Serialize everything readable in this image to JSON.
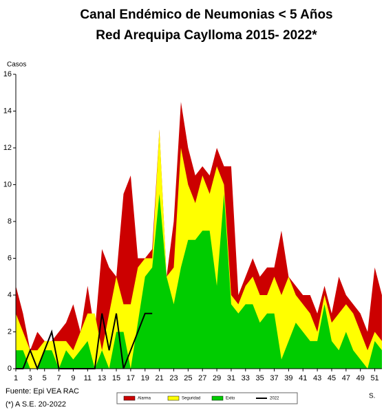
{
  "chart_data": {
    "type": "area",
    "title": "Canal Endémico de Neumonias < 5 Años",
    "subtitle": "Red Arequipa Caylloma 2015- 2022*",
    "y_label": "Casos",
    "x_label": "S.",
    "notes": [
      "Fuente: Epi VEA RAC",
      "(*) A S.E. 20-2022"
    ],
    "x": [
      1,
      2,
      3,
      4,
      5,
      6,
      7,
      8,
      9,
      10,
      11,
      12,
      13,
      14,
      15,
      16,
      17,
      18,
      19,
      20,
      21,
      22,
      23,
      24,
      25,
      26,
      27,
      28,
      29,
      30,
      31,
      32,
      33,
      34,
      35,
      36,
      37,
      38,
      39,
      40,
      41,
      42,
      43,
      44,
      45,
      46,
      47,
      48,
      49,
      50,
      51,
      52
    ],
    "xlim": [
      1,
      52
    ],
    "xticks": [
      1,
      3,
      5,
      7,
      9,
      11,
      13,
      15,
      17,
      19,
      21,
      23,
      25,
      27,
      29,
      31,
      33,
      35,
      37,
      39,
      41,
      43,
      45,
      47,
      49,
      51
    ],
    "ylim": [
      0,
      16
    ],
    "yticks": [
      0,
      2,
      4,
      6,
      8,
      10,
      12,
      14,
      16
    ],
    "grid": false,
    "series": [
      {
        "name": "Alarma",
        "color": "#cc0000",
        "kind": "area",
        "values": [
          4.5,
          3,
          1,
          2,
          1.5,
          1.5,
          2,
          2.5,
          3.5,
          2,
          4.5,
          2,
          6.5,
          5.5,
          5,
          9.5,
          10.5,
          6,
          6,
          6.5,
          13,
          5,
          8,
          14.5,
          12,
          10.5,
          11,
          10.5,
          12,
          11,
          11,
          4,
          5,
          6,
          5,
          5.5,
          5.5,
          7.5,
          5,
          4.5,
          4,
          4,
          3,
          4.5,
          3,
          5,
          4,
          3.5,
          3,
          2,
          5.5,
          4
        ]
      },
      {
        "name": "Seguridad",
        "color": "#ffff00",
        "kind": "area",
        "values": [
          3,
          2,
          1,
          1,
          1.5,
          1.5,
          1.5,
          1.5,
          1,
          2,
          3,
          3,
          1,
          3,
          5,
          3.5,
          3.5,
          5.5,
          6,
          6,
          13,
          5,
          5.5,
          12,
          10,
          9,
          10.5,
          9.5,
          11,
          10,
          4,
          3.5,
          4.5,
          5,
          4,
          4,
          5,
          4,
          5,
          4,
          3.5,
          3,
          2,
          4,
          2.5,
          3,
          3.5,
          3,
          2,
          1,
          2,
          1.5
        ]
      },
      {
        "name": "Exito",
        "color": "#00cc00",
        "kind": "area",
        "values": [
          1,
          1,
          0,
          0,
          1,
          1,
          0,
          1,
          0.5,
          1,
          1.5,
          0,
          1,
          0,
          2,
          2,
          0,
          2.5,
          5,
          5.5,
          9.5,
          5,
          3.5,
          5.5,
          7,
          7,
          7.5,
          7.5,
          4.5,
          9.5,
          3.5,
          3,
          3.5,
          3.5,
          2.5,
          3,
          3,
          0.5,
          1.5,
          2.5,
          2,
          1.5,
          1.5,
          3.5,
          1.5,
          1,
          2,
          1,
          0.5,
          0,
          1.5,
          1
        ]
      },
      {
        "name": "2022",
        "color": "#000000",
        "kind": "line",
        "values": [
          0,
          0,
          1,
          0,
          1,
          2,
          0,
          0,
          0,
          0,
          0,
          0,
          3,
          1,
          3,
          0,
          1,
          2,
          3,
          3,
          null,
          null,
          null,
          null,
          null,
          null,
          null,
          null,
          null,
          null,
          null,
          null,
          null,
          null,
          null,
          null,
          null,
          null,
          null,
          null,
          null,
          null,
          null,
          null,
          null,
          null,
          null,
          null,
          null,
          null,
          null,
          null
        ]
      }
    ]
  }
}
